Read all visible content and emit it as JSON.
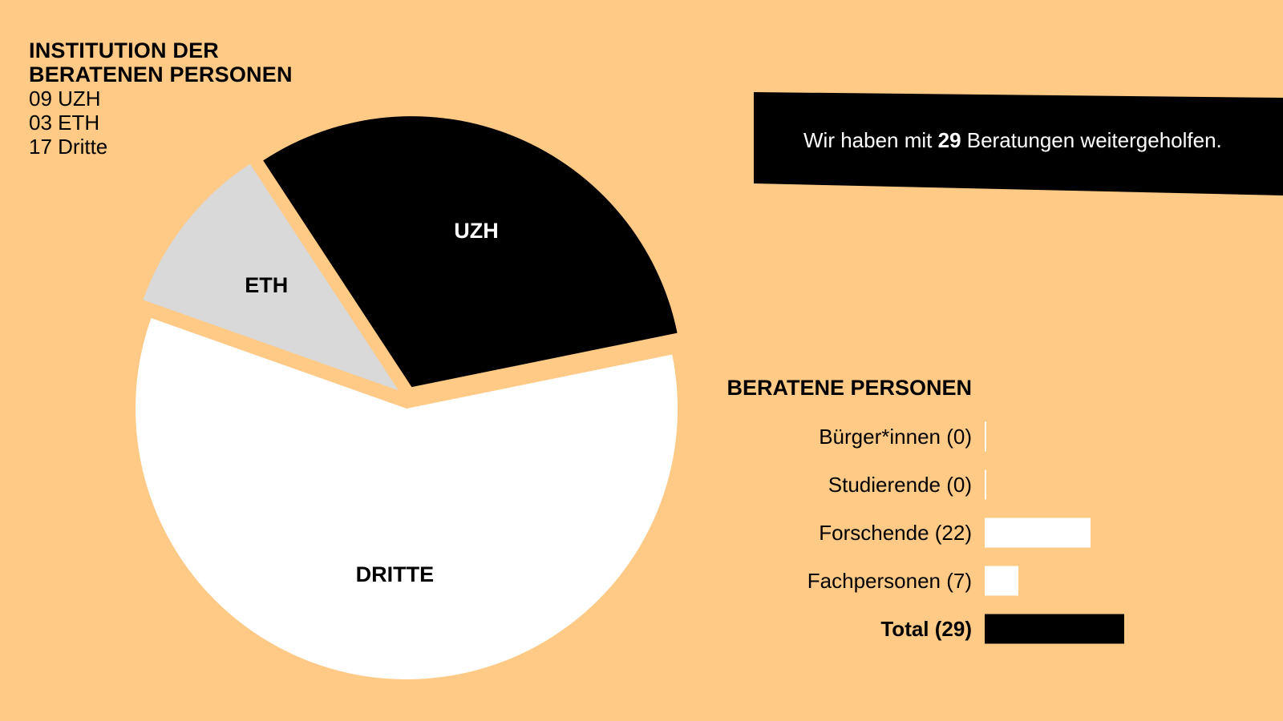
{
  "colors": {
    "background": "#ffc986",
    "uzh": "#000000",
    "eth": "#d9d9d9",
    "dritte": "#ffffff",
    "total_bar": "#000000",
    "bar": "#ffffff"
  },
  "institution_block": {
    "title": "INSTITUTION DER BERATENEN PERSONEN",
    "lines": [
      "09 UZH",
      "03 ETH",
      "17 Dritte"
    ]
  },
  "banner": {
    "prefix": "Wir haben mit ",
    "count": "29",
    "suffix": " Beratungen weitergeholfen."
  },
  "chart_data": [
    {
      "type": "pie",
      "title": "",
      "labels": [
        "UZH",
        "ETH",
        "DRITTE"
      ],
      "values": [
        9,
        3,
        17
      ],
      "exploded": true
    },
    {
      "type": "bar",
      "orientation": "horizontal",
      "title": "BERATENE PERSONEN",
      "categories": [
        "Bürger*innen (0)",
        "Studierende (0)",
        "Forschende (22)",
        "Fachpersonen (7)",
        "Total (29)"
      ],
      "values": [
        0,
        0,
        22,
        7,
        29
      ],
      "highlight": "Total (29)"
    }
  ]
}
